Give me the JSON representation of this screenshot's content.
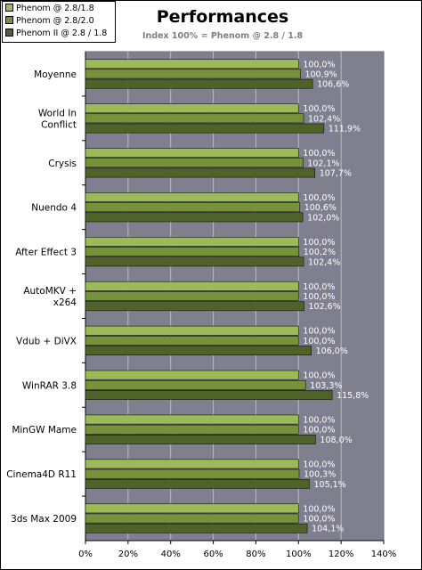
{
  "chart_data": {
    "type": "bar",
    "orientation": "horizontal",
    "title": "Performances",
    "subtitle": "Index 100% = Phenom @ 2.8 / 1.8",
    "categories": [
      "Moyenne",
      "World In Conflict",
      "Crysis",
      "Nuendo 4",
      "After Effect 3",
      "AutoMKV + x264",
      "Vdub + DiVX",
      "WinRAR 3.8",
      "MinGW Mame",
      "Cinema4D R11",
      "3ds Max 2009"
    ],
    "category_lines": [
      [
        "Moyenne"
      ],
      [
        "World In",
        "Conflict"
      ],
      [
        "Crysis"
      ],
      [
        "Nuendo 4"
      ],
      [
        "After Effect 3"
      ],
      [
        "AutoMKV +",
        "x264"
      ],
      [
        "Vdub + DiVX"
      ],
      [
        "WinRAR 3.8"
      ],
      [
        "MinGW Mame"
      ],
      [
        "Cinema4D R11"
      ],
      [
        "3ds Max 2009"
      ]
    ],
    "series": [
      {
        "name": "Phenom @ 2.8/1.8",
        "color": "#9bbb59",
        "values": [
          100.0,
          100.0,
          100.0,
          100.0,
          100.0,
          100.0,
          100.0,
          100.0,
          100.0,
          100.0,
          100.0
        ],
        "labels": [
          "100,0%",
          "100,0%",
          "100,0%",
          "100,0%",
          "100,0%",
          "100,0%",
          "100,0%",
          "100,0%",
          "100,0%",
          "100,0%",
          "100,0%"
        ]
      },
      {
        "name": "Phenom @ 2.8/2.0",
        "color": "#76933c",
        "values": [
          100.9,
          102.4,
          102.1,
          100.6,
          100.2,
          100.0,
          100.0,
          103.3,
          100.0,
          100.3,
          100.0
        ],
        "labels": [
          "100,9%",
          "102,4%",
          "102,1%",
          "100,6%",
          "100,2%",
          "100,0%",
          "100,0%",
          "103,3%",
          "100,0%",
          "100,3%",
          "100,0%"
        ]
      },
      {
        "name": "Phenom II @ 2.8 / 1.8",
        "color": "#4f6228",
        "values": [
          106.6,
          111.9,
          107.7,
          102.0,
          102.4,
          102.6,
          106.0,
          115.8,
          108.0,
          105.1,
          104.1
        ],
        "labels": [
          "106,6%",
          "111,9%",
          "107,7%",
          "102,0%",
          "102,4%",
          "102,6%",
          "106,0%",
          "115,8%",
          "108,0%",
          "105,1%",
          "104,1%"
        ]
      }
    ],
    "xlim": [
      0,
      140
    ],
    "x_ticks": [
      0,
      20,
      40,
      60,
      80,
      100,
      120,
      140
    ],
    "x_tick_labels": [
      "0%",
      "20%",
      "40%",
      "60%",
      "80%",
      "100%",
      "120%",
      "140%"
    ],
    "grid": "vertical",
    "legend_position": "top-left",
    "plot_background": "#7f7f8f",
    "gridline_color": "#bcbcbc"
  }
}
